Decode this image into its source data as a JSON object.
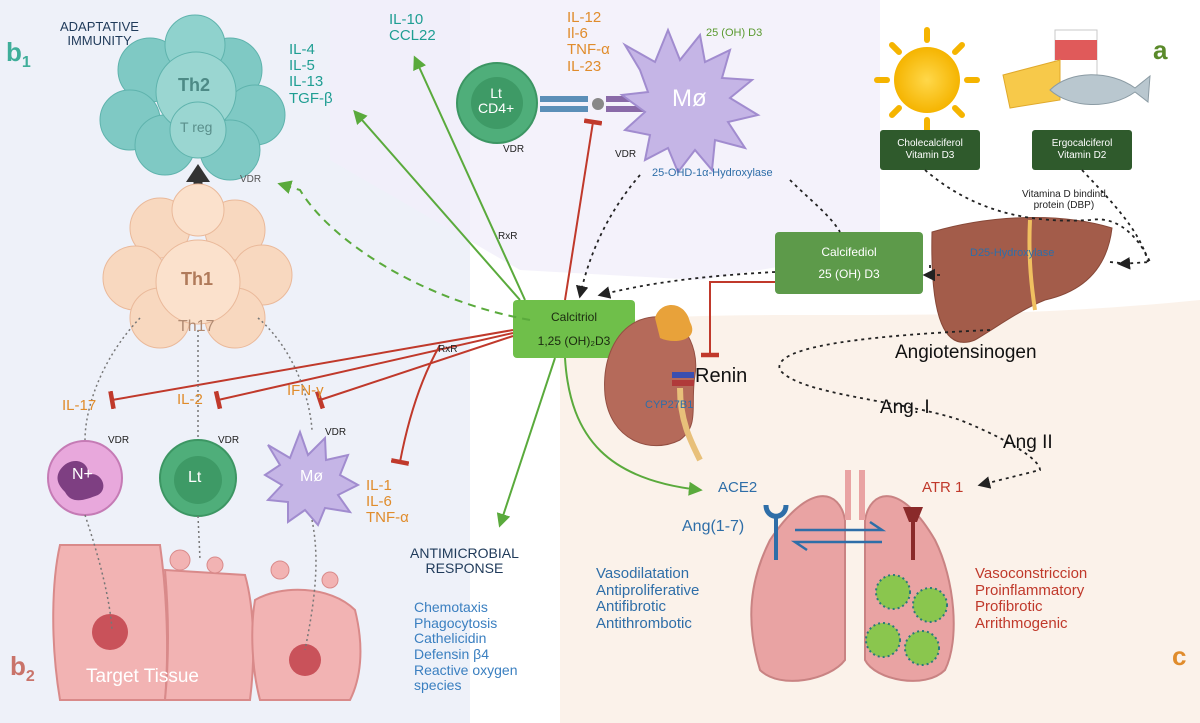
{
  "panel_labels": {
    "a": "a",
    "b1_main": "b",
    "b1_sub": "1",
    "b2_main": "b",
    "b2_sub": "2",
    "c": "c"
  },
  "adaptive_immunity": "ADAPTATIVE\nIMMUNITY",
  "th2_cluster": {
    "main": "Th2",
    "sub": "T reg"
  },
  "th2_cytokines": [
    "IL-4",
    "IL-5",
    "IL-13",
    "TGF-β"
  ],
  "th1_cluster": {
    "main": "Th1",
    "sub": "Th17"
  },
  "macrophage_cytokines": [
    "IL-10",
    "CCL22"
  ],
  "proinflammatory_cytokines": [
    "IL-12",
    "Il-6",
    "TNF-α",
    "IL-23"
  ],
  "macrophage_top": {
    "label": "Mø",
    "hydroxylated": "25 (OH) D3",
    "enzyme": "25-OHD-1α-Hydroxylase",
    "receptor": "VDR"
  },
  "lt_cd4": {
    "line1": "Lt",
    "line2": "CD4+",
    "receptor": "VDR"
  },
  "vdr_dashed": "VDR",
  "rxr_top": "RxR",
  "rxr_left": "RxR",
  "sources": {
    "d3": "Cholecalciferol\nVitamin D3",
    "d2": "Ergocalciferol\nVitamin D2",
    "dbp": "Vitamina D bindind\nprotein (DBP)"
  },
  "liver_enzyme": "D25-Hydroxylase",
  "calcifediol": {
    "title": "Calcifediol",
    "formula": "25 (OH) D3"
  },
  "calcitriol": {
    "title": "Calcitriol",
    "formula": "1,25 (OH)₂D3"
  },
  "kidney": {
    "enzyme": "CYP27B1",
    "renin": "Renin"
  },
  "raas": {
    "angiotensinogen": "Angiotensinogen",
    "ang1": "Ang. I",
    "ang2": "Ang II"
  },
  "inhibited_cytokines": {
    "il17": "IL-17",
    "il2": "IL-2",
    "ifn": "IFN-γ"
  },
  "macrophage_bottom_cytokines": [
    "IL-1",
    "IL-6",
    "TNF-α"
  ],
  "bottom_cells": [
    {
      "label": "N+",
      "receptor": "VDR"
    },
    {
      "label": "Lt",
      "receptor": "VDR"
    },
    {
      "label": "Mø",
      "receptor": "VDR"
    }
  ],
  "target_tissue": "Target Tissue",
  "antimicrobial": {
    "title": "ANTIMICROBIAL\nRESPONSE",
    "items": [
      "Chemotaxis",
      "Phagocytosis",
      "Cathelicidin",
      "Defensin β4",
      "Reactive oxygen",
      "species"
    ]
  },
  "lung": {
    "ace2": "ACE2",
    "atr1": "ATR 1",
    "ang17": "Ang(1-7)"
  },
  "ace2_effects": [
    "Vasodilatation",
    "Antiproliferative",
    "Antifibrotic",
    "Antithrombotic"
  ],
  "atr1_effects": [
    "Vasoconstriccion",
    "Proinflammatory",
    "Profibrotic",
    "Arrithmogenic"
  ],
  "colors": {
    "teal": "#1f9e93",
    "orange": "#e08c2c",
    "red": "#c0392b",
    "blue": "#2e6ea8",
    "green_arrow": "#5aaa3c",
    "box_green": "#5d9a4a",
    "dark_box": "#2f5a2c"
  }
}
